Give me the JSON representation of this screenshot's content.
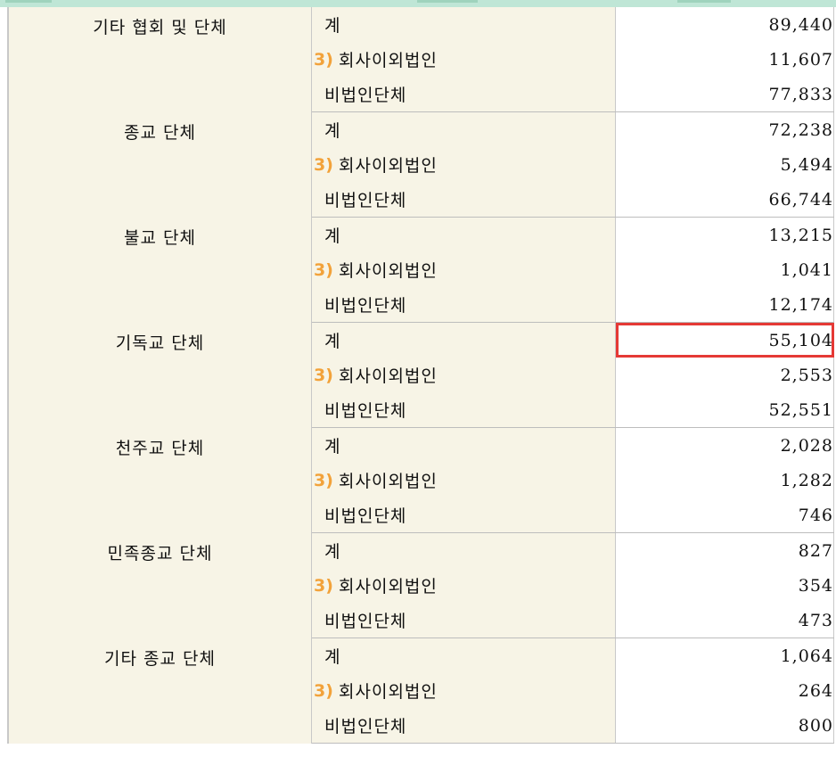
{
  "table": {
    "groups": [
      {
        "category": "기타 협회 및 단체",
        "rows": [
          {
            "note": "",
            "label": "계",
            "value": "89,440"
          },
          {
            "note": "3)",
            "label": "회사이외법인",
            "value": "11,607"
          },
          {
            "note": "",
            "label": "비법인단체",
            "value": "77,833"
          }
        ]
      },
      {
        "category": "종교 단체",
        "rows": [
          {
            "note": "",
            "label": "계",
            "value": "72,238"
          },
          {
            "note": "3)",
            "label": "회사이외법인",
            "value": "5,494"
          },
          {
            "note": "",
            "label": "비법인단체",
            "value": "66,744"
          }
        ]
      },
      {
        "category": "불교 단체",
        "rows": [
          {
            "note": "",
            "label": "계",
            "value": "13,215"
          },
          {
            "note": "3)",
            "label": "회사이외법인",
            "value": "1,041"
          },
          {
            "note": "",
            "label": "비법인단체",
            "value": "12,174"
          }
        ]
      },
      {
        "category": "기독교 단체",
        "rows": [
          {
            "note": "",
            "label": "계",
            "value": "55,104",
            "highlighted": true
          },
          {
            "note": "3)",
            "label": "회사이외법인",
            "value": "2,553"
          },
          {
            "note": "",
            "label": "비법인단체",
            "value": "52,551"
          }
        ]
      },
      {
        "category": "천주교 단체",
        "rows": [
          {
            "note": "",
            "label": "계",
            "value": "2,028"
          },
          {
            "note": "3)",
            "label": "회사이외법인",
            "value": "1,282"
          },
          {
            "note": "",
            "label": "비법인단체",
            "value": "746"
          }
        ]
      },
      {
        "category": "민족종교 단체",
        "rows": [
          {
            "note": "",
            "label": "계",
            "value": "827"
          },
          {
            "note": "3)",
            "label": "회사이외법인",
            "value": "354"
          },
          {
            "note": "",
            "label": "비법인단체",
            "value": "473"
          }
        ]
      },
      {
        "category": "기타 종교 단체",
        "rows": [
          {
            "note": "",
            "label": "계",
            "value": "1,064"
          },
          {
            "note": "3)",
            "label": "회사이외법인",
            "value": "264"
          },
          {
            "note": "",
            "label": "비법인단체",
            "value": "800"
          }
        ]
      }
    ]
  },
  "colors": {
    "header_strip": "#bfe6d6",
    "label_cell_bg": "#f7f4e6",
    "note_marker": "#f2a23a",
    "highlight_border": "#e53935"
  }
}
